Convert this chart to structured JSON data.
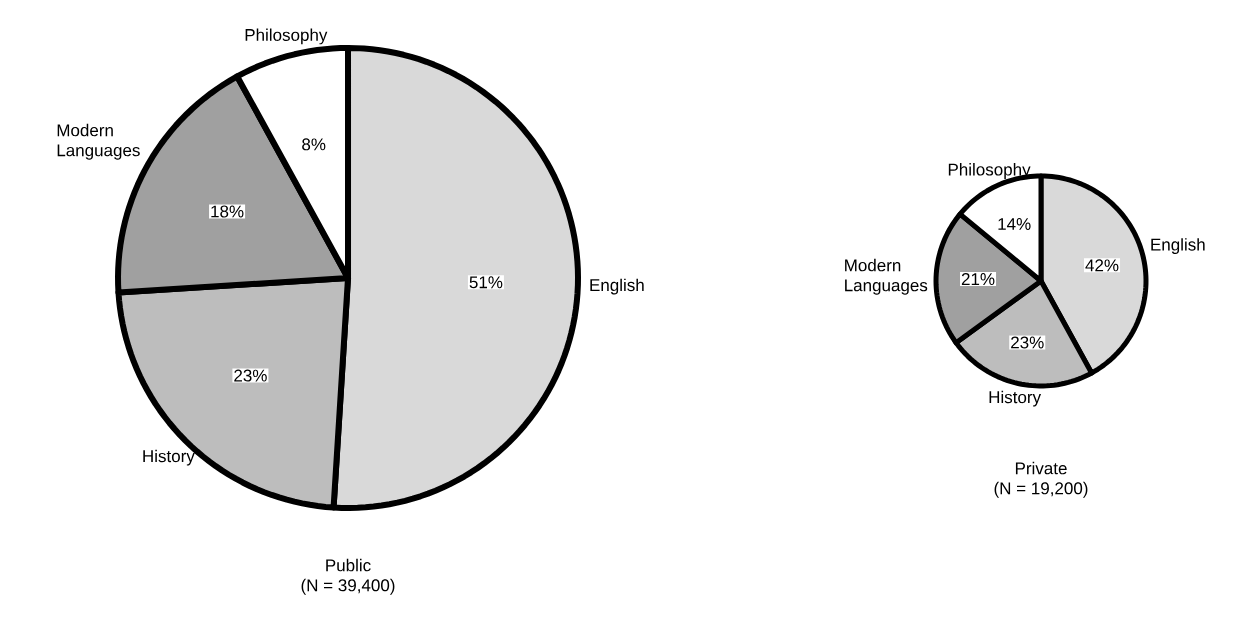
{
  "chart_data": [
    {
      "type": "pie",
      "title": "Public",
      "subtitle": "(N = 39,400)",
      "categories": [
        "English",
        "History",
        "Modern Languages",
        "Philosophy"
      ],
      "values": [
        51,
        23,
        18,
        8
      ],
      "value_labels": [
        "51%",
        "23%",
        "18%",
        "8%"
      ],
      "colors": [
        "#d9d9d9",
        "#bdbdbd",
        "#a0a0a0",
        "#ffffff"
      ]
    },
    {
      "type": "pie",
      "title": "Private",
      "subtitle": "(N = 19,200)",
      "categories": [
        "English",
        "History",
        "Modern Languages",
        "Philosophy"
      ],
      "values": [
        42,
        23,
        21,
        14
      ],
      "value_labels": [
        "42%",
        "23%",
        "21%",
        "14%"
      ],
      "colors": [
        "#d9d9d9",
        "#bdbdbd",
        "#a0a0a0",
        "#ffffff"
      ]
    }
  ]
}
